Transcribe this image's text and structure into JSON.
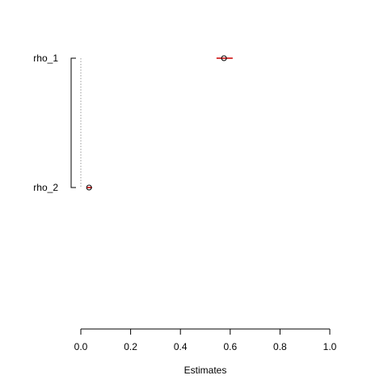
{
  "chart_data": {
    "type": "scatter",
    "xlabel": "Estimates",
    "xlim": [
      0,
      1
    ],
    "x_ticks": [
      "0.0",
      "0.2",
      "0.4",
      "0.6",
      "0.8",
      "1.0"
    ],
    "x_tick_values": [
      0,
      0.2,
      0.4,
      0.6,
      0.8,
      1.0
    ],
    "reference_line_x": 0,
    "rows": [
      {
        "label": "rho_1",
        "estimate": 0.575,
        "ci_low": 0.545,
        "ci_high": 0.61
      },
      {
        "label": "rho_2",
        "estimate": 0.033,
        "ci_low": 0.025,
        "ci_high": 0.045
      }
    ],
    "colors": {
      "interval": "#cc0000",
      "point": "#000000",
      "reference": "#999999"
    }
  }
}
